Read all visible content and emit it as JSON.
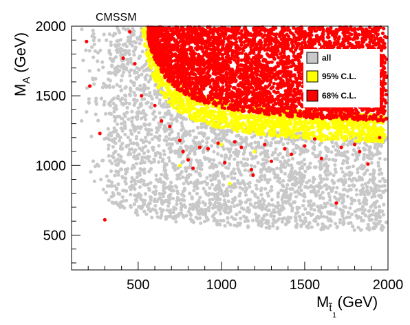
{
  "chart_data": {
    "type": "scatter",
    "title": "CMSSM",
    "xlabel": {
      "main": "M",
      "sub1": "t̃",
      "sub2": "1",
      "unit": "(GeV)"
    },
    "ylabel": {
      "main": "M",
      "sub": "A",
      "unit": "(GeV)"
    },
    "xlim": [
      100,
      2000
    ],
    "ylim": [
      250,
      2000
    ],
    "x_ticks": [
      500,
      1000,
      1500,
      2000
    ],
    "x_tick_labels": [
      "500",
      "1000",
      "1500",
      "2000"
    ],
    "y_ticks": [
      500,
      1000,
      1500,
      2000
    ],
    "y_tick_labels": [
      "500",
      "1000",
      "1500",
      "2000"
    ],
    "grid": false,
    "legend_position": "top-right",
    "series": [
      {
        "name": "all",
        "color": "#c8c8c8",
        "marker": "circle",
        "region": "fills most of the plane above the curve M_A ≈ 60000/(M_t - 80) + 500; sparse at M_t < 350"
      },
      {
        "name": "95% C.L.",
        "color": "#ffff00",
        "marker": "circle",
        "region": "band just outside the 68% region, M_A > ~1150 at M_t 600–2000",
        "points": [
          [
            1050,
            870
          ],
          [
            750,
            1000
          ],
          [
            1000,
            1150
          ],
          [
            1200,
            1100
          ],
          [
            1600,
            1180
          ],
          [
            1900,
            1250
          ]
        ]
      },
      {
        "name": "68% C.L.",
        "color": "#ff0000",
        "marker": "circle",
        "region": "dense region M_t 550–2000, M_A ≈ 1250–2000",
        "points": [
          [
            190,
            1890
          ],
          [
            210,
            1570
          ],
          [
            270,
            1230
          ],
          [
            300,
            610
          ],
          [
            410,
            1770
          ],
          [
            450,
            1960
          ],
          [
            480,
            1730
          ],
          [
            520,
            1500
          ],
          [
            560,
            1960
          ],
          [
            600,
            1430
          ],
          [
            640,
            1320
          ],
          [
            690,
            1280
          ],
          [
            750,
            1180
          ],
          [
            770,
            1100
          ],
          [
            800,
            1040
          ],
          [
            830,
            980
          ],
          [
            870,
            1130
          ],
          [
            920,
            1120
          ],
          [
            980,
            1160
          ],
          [
            1020,
            1020
          ],
          [
            1080,
            1170
          ],
          [
            1120,
            1130
          ],
          [
            1180,
            970
          ],
          [
            1190,
            930
          ],
          [
            1260,
            1150
          ],
          [
            1300,
            1030
          ],
          [
            1380,
            1120
          ],
          [
            1420,
            1080
          ],
          [
            1500,
            1140
          ],
          [
            1560,
            1190
          ],
          [
            1600,
            1050
          ],
          [
            1690,
            730
          ],
          [
            1720,
            1130
          ],
          [
            1800,
            1150
          ],
          [
            1830,
            1100
          ],
          [
            1880,
            1010
          ],
          [
            1950,
            1200
          ]
        ]
      }
    ]
  }
}
